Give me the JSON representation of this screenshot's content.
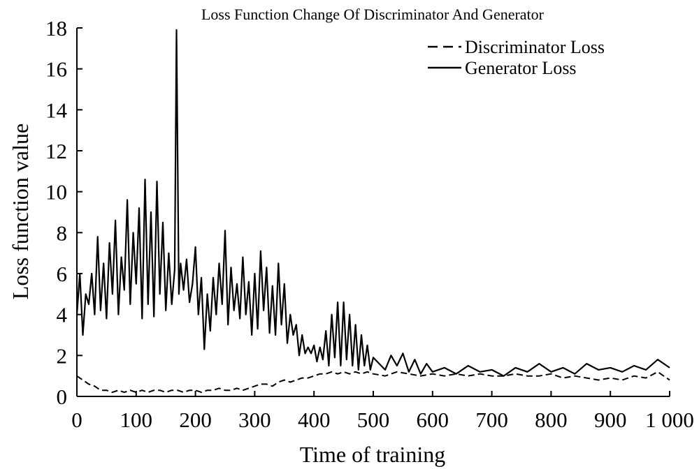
{
  "chart_data": {
    "type": "line",
    "title": "Loss Function Change Of Discriminator And Generator",
    "xlabel": "Time of  training",
    "ylabel": "Loss function value",
    "xlim": [
      0,
      1000
    ],
    "ylim": [
      0,
      18
    ],
    "x_ticks": [
      0,
      100,
      200,
      300,
      400,
      500,
      600,
      700,
      800,
      900,
      1000
    ],
    "x_tick_labels": [
      "0",
      "100",
      "200",
      "300",
      "400",
      "500",
      "600",
      "700",
      "800",
      "900",
      "1 000"
    ],
    "y_ticks": [
      0,
      2,
      4,
      6,
      8,
      10,
      12,
      14,
      16,
      18
    ],
    "y_tick_labels": [
      "0",
      "2",
      "4",
      "6",
      "8",
      "10",
      "12",
      "14",
      "16",
      "18"
    ],
    "grid": false,
    "legend_position": "top-right",
    "series": [
      {
        "name": "Discriminator Loss",
        "style": "dashed",
        "color": "#000000",
        "x": [
          0,
          10,
          20,
          30,
          40,
          50,
          60,
          70,
          80,
          90,
          100,
          110,
          120,
          130,
          140,
          150,
          160,
          170,
          180,
          190,
          200,
          210,
          220,
          230,
          240,
          250,
          260,
          270,
          280,
          290,
          300,
          310,
          320,
          330,
          340,
          350,
          360,
          370,
          380,
          390,
          400,
          410,
          420,
          430,
          440,
          450,
          460,
          470,
          480,
          490,
          500,
          520,
          540,
          560,
          580,
          600,
          620,
          640,
          660,
          680,
          700,
          720,
          740,
          760,
          780,
          800,
          820,
          840,
          860,
          880,
          900,
          920,
          940,
          960,
          980,
          1000
        ],
        "values": [
          1.0,
          0.8,
          0.6,
          0.5,
          0.3,
          0.3,
          0.2,
          0.3,
          0.2,
          0.3,
          0.2,
          0.3,
          0.2,
          0.3,
          0.3,
          0.2,
          0.3,
          0.3,
          0.2,
          0.3,
          0.3,
          0.2,
          0.3,
          0.3,
          0.4,
          0.3,
          0.3,
          0.4,
          0.3,
          0.4,
          0.5,
          0.6,
          0.6,
          0.5,
          0.7,
          0.8,
          0.7,
          0.8,
          0.9,
          0.9,
          1.0,
          1.1,
          1.1,
          1.2,
          1.1,
          1.2,
          1.1,
          1.2,
          1.1,
          1.2,
          1.1,
          1.0,
          1.2,
          1.1,
          1.0,
          1.1,
          1.0,
          1.1,
          1.0,
          1.1,
          1.0,
          1.0,
          1.1,
          1.0,
          1.0,
          1.1,
          0.9,
          1.0,
          0.9,
          0.8,
          0.9,
          0.8,
          1.0,
          0.9,
          1.2,
          0.8
        ]
      },
      {
        "name": "Generator Loss",
        "style": "solid",
        "color": "#000000",
        "x": [
          0,
          5,
          10,
          15,
          20,
          25,
          30,
          35,
          40,
          45,
          50,
          55,
          60,
          65,
          70,
          75,
          80,
          85,
          90,
          95,
          100,
          105,
          110,
          115,
          120,
          125,
          130,
          135,
          140,
          145,
          150,
          155,
          160,
          165,
          168,
          172,
          175,
          180,
          185,
          190,
          195,
          200,
          205,
          210,
          215,
          220,
          225,
          230,
          235,
          240,
          245,
          250,
          255,
          260,
          265,
          270,
          275,
          280,
          285,
          290,
          295,
          300,
          305,
          310,
          315,
          320,
          325,
          330,
          335,
          340,
          345,
          350,
          355,
          360,
          365,
          370,
          375,
          380,
          385,
          390,
          395,
          400,
          405,
          410,
          415,
          420,
          425,
          430,
          435,
          440,
          445,
          450,
          455,
          460,
          465,
          470,
          475,
          480,
          485,
          490,
          495,
          500,
          510,
          520,
          530,
          540,
          550,
          560,
          570,
          580,
          590,
          600,
          620,
          640,
          660,
          680,
          700,
          720,
          740,
          760,
          780,
          800,
          820,
          840,
          860,
          880,
          900,
          920,
          940,
          960,
          980,
          1000
        ],
        "values": [
          4.0,
          6.0,
          3.0,
          5.0,
          4.5,
          6.0,
          4.0,
          7.8,
          4.2,
          6.5,
          3.8,
          7.5,
          5.0,
          8.6,
          4.0,
          6.8,
          5.2,
          9.6,
          4.5,
          8.0,
          5.5,
          9.2,
          3.8,
          10.6,
          4.5,
          9.0,
          3.9,
          10.5,
          5.0,
          8.5,
          4.2,
          7.0,
          4.5,
          6.2,
          17.9,
          5.0,
          6.5,
          5.2,
          6.7,
          4.6,
          5.5,
          7.3,
          4.0,
          5.8,
          2.3,
          5.0,
          3.2,
          5.8,
          4.0,
          6.5,
          4.5,
          8.1,
          3.5,
          6.3,
          4.2,
          5.5,
          3.8,
          6.8,
          4.0,
          5.6,
          3.0,
          6.0,
          3.3,
          7.1,
          4.2,
          6.3,
          3.1,
          5.4,
          3.0,
          6.5,
          3.5,
          5.5,
          2.6,
          4.0,
          3.0,
          3.5,
          2.0,
          3.0,
          2.1,
          2.4,
          2.1,
          2.5,
          1.7,
          2.4,
          1.8,
          3.2,
          1.5,
          4.0,
          1.9,
          4.6,
          1.5,
          4.6,
          1.8,
          4.0,
          1.5,
          3.5,
          1.3,
          3.0,
          1.5,
          2.5,
          1.3,
          1.9,
          1.6,
          1.3,
          2.0,
          1.5,
          2.1,
          1.2,
          1.8,
          1.1,
          1.6,
          1.2,
          1.4,
          1.1,
          1.5,
          1.2,
          1.3,
          1.0,
          1.4,
          1.2,
          1.6,
          1.2,
          1.4,
          1.1,
          1.6,
          1.3,
          1.4,
          1.2,
          1.5,
          1.3,
          1.8,
          1.4
        ]
      }
    ]
  }
}
